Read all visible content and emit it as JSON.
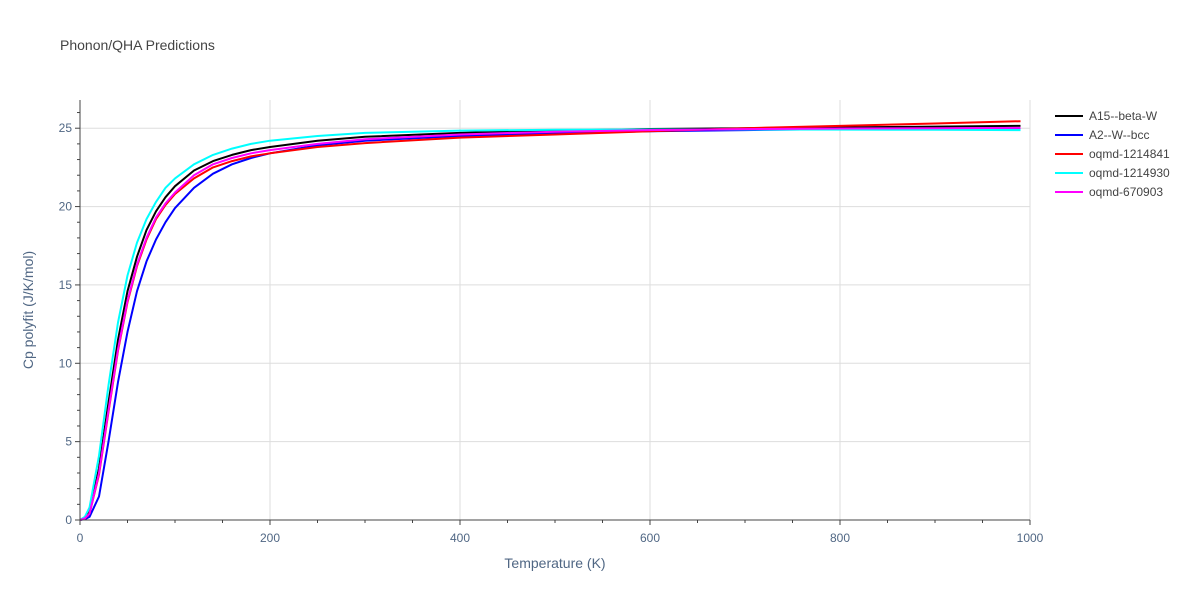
{
  "chart_data": {
    "type": "line",
    "title": "Phonon/QHA Predictions",
    "xlabel": "Temperature (K)",
    "ylabel": "Cp polyfit (J/K/mol)",
    "xlim": [
      0,
      1000
    ],
    "ylim": [
      0,
      26.8
    ],
    "xticks": [
      0,
      200,
      400,
      600,
      800,
      1000
    ],
    "yticks": [
      0,
      5,
      10,
      15,
      20,
      25
    ],
    "grid": true,
    "legend_position": "top-right",
    "series": [
      {
        "name": "A15--beta-W",
        "color": "#000000",
        "x": [
          0,
          5,
          10,
          20,
          30,
          40,
          50,
          60,
          70,
          80,
          90,
          100,
          120,
          140,
          160,
          180,
          200,
          250,
          300,
          400,
          500,
          600,
          700,
          800,
          900,
          990
        ],
        "y": [
          0,
          0.1,
          0.5,
          3.3,
          7.5,
          11.5,
          14.6,
          16.8,
          18.5,
          19.7,
          20.6,
          21.3,
          22.3,
          22.9,
          23.3,
          23.6,
          23.8,
          24.2,
          24.45,
          24.7,
          24.85,
          24.95,
          25.0,
          25.05,
          25.1,
          25.15
        ]
      },
      {
        "name": "A2--W--bcc",
        "color": "#0000ff",
        "x": [
          0,
          5,
          10,
          20,
          30,
          40,
          50,
          60,
          70,
          80,
          90,
          100,
          120,
          140,
          160,
          180,
          200,
          250,
          300,
          400,
          500,
          600,
          700,
          800,
          900,
          990
        ],
        "y": [
          0,
          0.05,
          0.2,
          1.5,
          5.0,
          8.8,
          12.0,
          14.6,
          16.5,
          17.9,
          19.0,
          19.9,
          21.2,
          22.1,
          22.7,
          23.1,
          23.4,
          23.9,
          24.2,
          24.5,
          24.7,
          24.8,
          24.88,
          24.94,
          24.98,
          25.0
        ]
      },
      {
        "name": "oqmd-1214841",
        "color": "#ff0000",
        "x": [
          0,
          5,
          10,
          20,
          30,
          40,
          50,
          60,
          70,
          80,
          90,
          100,
          120,
          140,
          160,
          180,
          200,
          250,
          300,
          400,
          500,
          600,
          700,
          800,
          900,
          990
        ],
        "y": [
          0,
          0.1,
          0.4,
          2.9,
          6.9,
          10.8,
          13.9,
          16.2,
          17.9,
          19.2,
          20.1,
          20.8,
          21.8,
          22.5,
          22.9,
          23.2,
          23.4,
          23.8,
          24.05,
          24.4,
          24.6,
          24.8,
          25.0,
          25.15,
          25.3,
          25.45
        ]
      },
      {
        "name": "oqmd-1214930",
        "color": "#00ffff",
        "x": [
          0,
          5,
          10,
          20,
          30,
          40,
          50,
          60,
          70,
          80,
          90,
          100,
          120,
          140,
          160,
          180,
          200,
          250,
          300,
          400,
          500,
          600,
          700,
          800,
          900,
          990
        ],
        "y": [
          0,
          0.2,
          0.8,
          4.1,
          8.6,
          12.6,
          15.6,
          17.7,
          19.2,
          20.3,
          21.2,
          21.8,
          22.7,
          23.3,
          23.7,
          24.0,
          24.2,
          24.5,
          24.7,
          24.85,
          24.9,
          24.92,
          24.92,
          24.91,
          24.9,
          24.88
        ]
      },
      {
        "name": "oqmd-670903",
        "color": "#ff00ff",
        "x": [
          0,
          5,
          10,
          20,
          30,
          40,
          50,
          60,
          70,
          80,
          90,
          100,
          120,
          140,
          160,
          180,
          200,
          250,
          300,
          400,
          500,
          600,
          700,
          800,
          900,
          990
        ],
        "y": [
          0,
          0.1,
          0.4,
          3.0,
          7.0,
          10.9,
          14.0,
          16.3,
          18.0,
          19.3,
          20.2,
          20.9,
          22.0,
          22.7,
          23.1,
          23.4,
          23.6,
          24.0,
          24.3,
          24.6,
          24.78,
          24.88,
          24.94,
          24.98,
          25.0,
          25.02
        ]
      }
    ]
  }
}
